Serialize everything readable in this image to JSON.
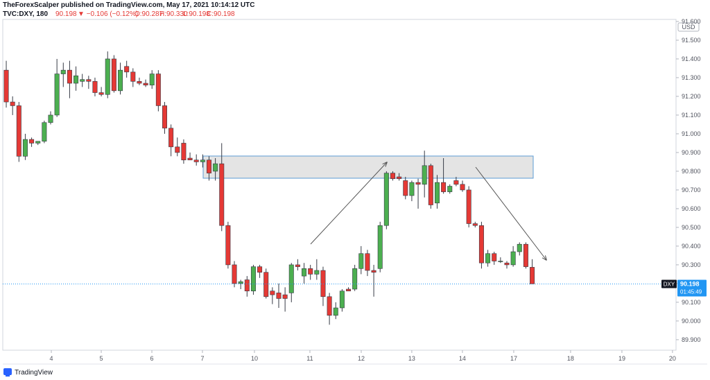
{
  "header": {
    "publisher": "TheForexScalper published on TradingView.com, May 17, 2021 10:14:12 UTC",
    "symbol": "TVC:DXY, 180",
    "price": "90.198",
    "change": "▼ −0.106 (−0.12%)",
    "open": "O:90.287",
    "high": "H:90.330",
    "low": "L:90.198",
    "close": "C:90.198"
  },
  "footer": {
    "brand": "TradingView"
  },
  "chart_data": {
    "type": "candlestick",
    "currency": "USD",
    "categories": [
      null,
      null,
      null,
      null,
      null,
      null,
      null,
      null,
      null,
      null,
      null,
      null,
      null,
      null,
      null,
      null,
      null,
      null,
      null,
      null,
      null,
      null,
      null,
      null,
      null,
      null,
      null,
      null,
      null,
      null,
      null,
      null,
      null,
      null,
      null,
      null,
      null,
      null,
      null,
      null,
      null,
      null,
      null,
      null,
      null,
      null,
      null,
      null,
      null,
      null,
      null,
      null,
      null,
      null,
      null,
      null,
      null,
      null,
      null,
      null,
      null,
      null,
      null,
      null,
      null,
      null,
      null,
      null,
      null,
      null,
      null,
      null,
      null,
      null,
      null,
      null,
      null,
      null,
      null,
      null,
      null,
      null,
      null,
      null
    ],
    "up_color": "#4caf50",
    "down_color": "#e53935",
    "wick_color": "#363a45",
    "open": [
      91.34,
      91.17,
      91.15,
      90.88,
      90.97,
      90.95,
      90.96,
      91.06,
      91.1,
      91.32,
      91.34,
      91.27,
      91.28,
      91.29,
      91.28,
      91.22,
      91.21,
      91.4,
      91.23,
      91.36,
      91.33,
      91.28,
      91.27,
      91.26,
      91.32,
      91.15,
      91.03,
      90.93,
      90.95,
      90.87,
      90.86,
      90.85,
      90.86,
      90.8,
      90.84,
      90.51,
      90.3,
      90.2,
      90.22,
      90.16,
      90.29,
      90.26,
      90.16,
      90.15,
      90.14,
      90.15,
      90.3,
      90.24,
      90.28,
      90.25,
      90.27,
      90.13,
      90.03,
      90.07,
      90.17,
      90.17,
      90.28,
      90.36,
      90.27,
      90.28,
      90.51,
      90.79,
      90.77,
      90.75,
      90.67,
      90.74,
      90.73,
      90.83,
      90.63,
      90.74,
      90.69,
      90.75,
      90.73,
      90.7,
      90.52,
      90.51,
      90.31,
      90.36,
      90.32,
      90.31,
      90.3,
      90.37,
      90.41,
      90.287
    ],
    "high": [
      91.39,
      91.2,
      91.17,
      91.0,
      90.98,
      90.96,
      91.07,
      91.12,
      91.4,
      91.38,
      91.39,
      91.36,
      91.32,
      91.31,
      91.3,
      91.25,
      91.44,
      91.42,
      91.38,
      91.39,
      91.35,
      91.3,
      91.29,
      91.34,
      91.34,
      91.17,
      91.05,
      90.98,
      90.97,
      90.9,
      90.89,
      90.89,
      90.88,
      90.87,
      90.95,
      90.53,
      90.32,
      90.22,
      90.24,
      90.3,
      90.3,
      90.28,
      90.18,
      90.2,
      90.18,
      90.31,
      90.33,
      90.31,
      90.3,
      90.33,
      90.29,
      90.15,
      90.1,
      90.17,
      90.18,
      90.3,
      90.4,
      90.38,
      90.3,
      90.53,
      90.8,
      90.8,
      90.79,
      90.77,
      90.75,
      90.76,
      90.91,
      90.84,
      90.78,
      90.87,
      90.73,
      90.77,
      90.75,
      90.72,
      90.53,
      90.53,
      90.38,
      90.37,
      90.34,
      90.32,
      90.4,
      90.42,
      90.42,
      90.33
    ],
    "low": [
      91.14,
      91.1,
      90.85,
      90.86,
      90.93,
      90.94,
      90.95,
      91.05,
      91.09,
      91.25,
      91.19,
      91.23,
      91.25,
      91.24,
      91.2,
      91.2,
      91.19,
      91.22,
      91.21,
      91.3,
      91.25,
      91.26,
      91.25,
      91.24,
      91.12,
      91.0,
      90.88,
      90.88,
      90.84,
      90.86,
      90.83,
      90.82,
      90.75,
      90.75,
      90.48,
      90.28,
      90.18,
      90.17,
      90.13,
      90.14,
      90.23,
      90.12,
      90.09,
      90.07,
      90.05,
      90.1,
      90.27,
      90.2,
      90.22,
      90.22,
      90.08,
      89.98,
      90.01,
      90.05,
      90.16,
      90.16,
      90.25,
      90.24,
      90.13,
      90.26,
      90.49,
      90.75,
      90.75,
      90.65,
      90.64,
      90.6,
      90.66,
      90.6,
      90.6,
      90.68,
      90.68,
      90.72,
      90.69,
      90.5,
      90.5,
      90.28,
      90.29,
      90.3,
      90.31,
      90.28,
      90.29,
      90.35,
      90.28,
      90.198
    ],
    "close": [
      91.17,
      91.15,
      90.88,
      90.97,
      90.95,
      90.96,
      91.06,
      91.1,
      91.32,
      91.34,
      91.27,
      91.31,
      91.29,
      91.28,
      91.22,
      91.21,
      91.4,
      91.23,
      91.34,
      91.33,
      91.28,
      91.27,
      91.26,
      91.32,
      91.15,
      91.03,
      90.93,
      90.9,
      90.86,
      90.86,
      90.85,
      90.86,
      90.79,
      90.84,
      90.51,
      90.3,
      90.2,
      90.21,
      90.16,
      90.29,
      90.26,
      90.13,
      90.14,
      90.12,
      90.12,
      90.3,
      90.29,
      90.28,
      90.25,
      90.27,
      90.13,
      90.03,
      90.07,
      90.16,
      90.16,
      90.28,
      90.36,
      90.27,
      90.26,
      90.51,
      90.79,
      90.76,
      90.76,
      90.67,
      90.74,
      90.73,
      90.83,
      90.62,
      90.74,
      90.69,
      90.72,
      90.73,
      90.7,
      90.52,
      90.51,
      90.31,
      90.36,
      90.32,
      90.32,
      90.3,
      90.37,
      90.41,
      90.29,
      90.198
    ],
    "xlim": [
      -0.55,
      105.7
    ],
    "xticks": [
      {
        "value": 7.11,
        "label": "4"
      },
      {
        "value": 14.99,
        "label": "5"
      },
      {
        "value": 22.98,
        "label": "6"
      },
      {
        "value": 30.96,
        "label": "7"
      },
      {
        "value": 39.17,
        "label": "10"
      },
      {
        "value": 47.92,
        "label": "11"
      },
      {
        "value": 56.02,
        "label": "12"
      },
      {
        "value": 64.0,
        "label": "13"
      },
      {
        "value": 71.99,
        "label": "14"
      },
      {
        "value": 80.09,
        "label": "17"
      },
      {
        "value": 89.06,
        "label": "18"
      },
      {
        "value": 97.16,
        "label": "19"
      },
      {
        "value": 105.14,
        "label": "20"
      }
    ],
    "ylim": [
      89.844,
      91.611
    ],
    "yticks": [
      {
        "value": 89.9,
        "label": "89.900"
      },
      {
        "value": 90.0,
        "label": "90.000"
      },
      {
        "value": 90.1,
        "label": "90.100"
      },
      {
        "value": 90.2,
        "label": "90.200"
      },
      {
        "value": 90.3,
        "label": "90.300"
      },
      {
        "value": 90.4,
        "label": "90.400"
      },
      {
        "value": 90.5,
        "label": "90.500"
      },
      {
        "value": 90.6,
        "label": "90.600"
      },
      {
        "value": 90.7,
        "label": "90.700"
      },
      {
        "value": 90.8,
        "label": "90.800"
      },
      {
        "value": 90.9,
        "label": "90.900"
      },
      {
        "value": 91.0,
        "label": "91.000"
      },
      {
        "value": 91.1,
        "label": "91.100"
      },
      {
        "value": 91.2,
        "label": "91.200"
      },
      {
        "value": 91.3,
        "label": "91.300"
      },
      {
        "value": 91.4,
        "label": "91.400"
      },
      {
        "value": 91.5,
        "label": "91.500"
      },
      {
        "value": 91.6,
        "label": "91.600"
      }
    ],
    "grid": false,
    "last_price": {
      "value": 90.198,
      "symbol": "DXY",
      "countdown": "01:45:49",
      "color": "#2196f3"
    }
  }
}
